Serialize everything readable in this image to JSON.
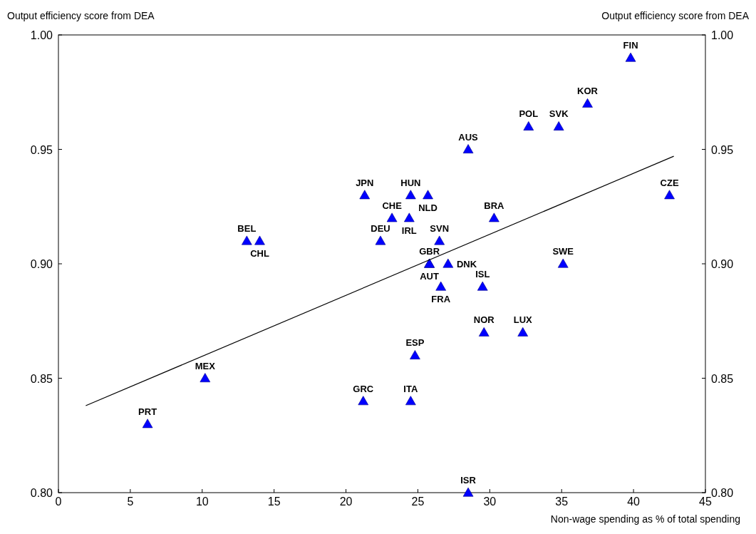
{
  "chart_data": {
    "type": "scatter",
    "xlabel": "Non-wage spending as % of total spending",
    "ylabel": "Output efficiency score from DEA",
    "y2label": "Output efficiency score from DEA",
    "xlim": [
      0,
      45
    ],
    "xticks": [
      0,
      5,
      10,
      15,
      20,
      25,
      30,
      35,
      40,
      45
    ],
    "ylim": [
      0.8,
      1.0
    ],
    "yticks": [
      {
        "value": 0.8,
        "label": "0.80"
      },
      {
        "value": 0.85,
        "label": "0.85"
      },
      {
        "value": 0.9,
        "label": "0.90"
      },
      {
        "value": 0.95,
        "label": "0.95"
      },
      {
        "value": 1.0,
        "label": "1.00"
      }
    ],
    "y2lim": [
      0.8,
      1.0
    ],
    "y2ticks": [
      {
        "value": 0.8,
        "label": "0.80"
      },
      {
        "value": 0.85,
        "label": "0.85"
      },
      {
        "value": 0.9,
        "label": "0.90"
      },
      {
        "value": 0.95,
        "label": "0.95"
      },
      {
        "value": 1.0,
        "label": "1.00"
      }
    ],
    "series": [
      {
        "marker": "triangle",
        "color": "#0000ff",
        "x": [
          39.8,
          36.8,
          32.7,
          34.8,
          28.5,
          21.3,
          24.5,
          25.7,
          42.5,
          23.2,
          24.4,
          30.3,
          13.1,
          14.0,
          22.4,
          26.5,
          25.8,
          25.8,
          27.1,
          35.1,
          26.6,
          29.5,
          29.6,
          32.3,
          24.8,
          10.2,
          21.2,
          24.5,
          6.2,
          28.5
        ],
        "values": [
          0.99,
          0.97,
          0.96,
          0.96,
          0.95,
          0.93,
          0.93,
          0.93,
          0.93,
          0.92,
          0.92,
          0.92,
          0.91,
          0.91,
          0.91,
          0.91,
          0.9,
          0.9,
          0.9,
          0.9,
          0.89,
          0.89,
          0.87,
          0.87,
          0.86,
          0.85,
          0.84,
          0.84,
          0.83,
          0.8
        ]
      },
      {
        "type": "line",
        "color": "#000000",
        "x": [
          1.9,
          42.8
        ],
        "values": [
          0.838,
          0.947
        ]
      }
    ],
    "annotations": [
      {
        "text": "FIN",
        "x": 39.8,
        "y": 0.99
      },
      {
        "text": "KOR",
        "x": 36.8,
        "y": 0.97
      },
      {
        "text": "POL",
        "x": 32.7,
        "y": 0.96
      },
      {
        "text": "SVK",
        "x": 34.8,
        "y": 0.96
      },
      {
        "text": "AUS",
        "x": 28.5,
        "y": 0.95
      },
      {
        "text": "JPN",
        "x": 21.3,
        "y": 0.93
      },
      {
        "text": "HUN",
        "x": 24.5,
        "y": 0.93
      },
      {
        "text": "NLD",
        "x": 25.7,
        "y": 0.93
      },
      {
        "text": "CZE",
        "x": 42.5,
        "y": 0.93
      },
      {
        "text": "CHE",
        "x": 23.2,
        "y": 0.92
      },
      {
        "text": "IRL",
        "x": 24.4,
        "y": 0.92
      },
      {
        "text": "BRA",
        "x": 30.3,
        "y": 0.92
      },
      {
        "text": "BEL",
        "x": 13.1,
        "y": 0.91
      },
      {
        "text": "CHL",
        "x": 14.0,
        "y": 0.91
      },
      {
        "text": "DEU",
        "x": 22.4,
        "y": 0.91
      },
      {
        "text": "SVN",
        "x": 26.5,
        "y": 0.91
      },
      {
        "text": "GBR",
        "x": 25.8,
        "y": 0.9
      },
      {
        "text": "AUT",
        "x": 25.8,
        "y": 0.9
      },
      {
        "text": "DNK",
        "x": 27.1,
        "y": 0.9
      },
      {
        "text": "SWE",
        "x": 35.1,
        "y": 0.9
      },
      {
        "text": "FRA",
        "x": 26.6,
        "y": 0.89
      },
      {
        "text": "ISL",
        "x": 29.5,
        "y": 0.89
      },
      {
        "text": "NOR",
        "x": 29.6,
        "y": 0.87
      },
      {
        "text": "LUX",
        "x": 32.3,
        "y": 0.87
      },
      {
        "text": "ESP",
        "x": 24.8,
        "y": 0.86
      },
      {
        "text": "MEX",
        "x": 10.2,
        "y": 0.85
      },
      {
        "text": "GRC",
        "x": 21.2,
        "y": 0.84
      },
      {
        "text": "ITA",
        "x": 24.5,
        "y": 0.84
      },
      {
        "text": "PRT",
        "x": 6.2,
        "y": 0.83
      },
      {
        "text": "ISR",
        "x": 28.5,
        "y": 0.8
      }
    ]
  }
}
